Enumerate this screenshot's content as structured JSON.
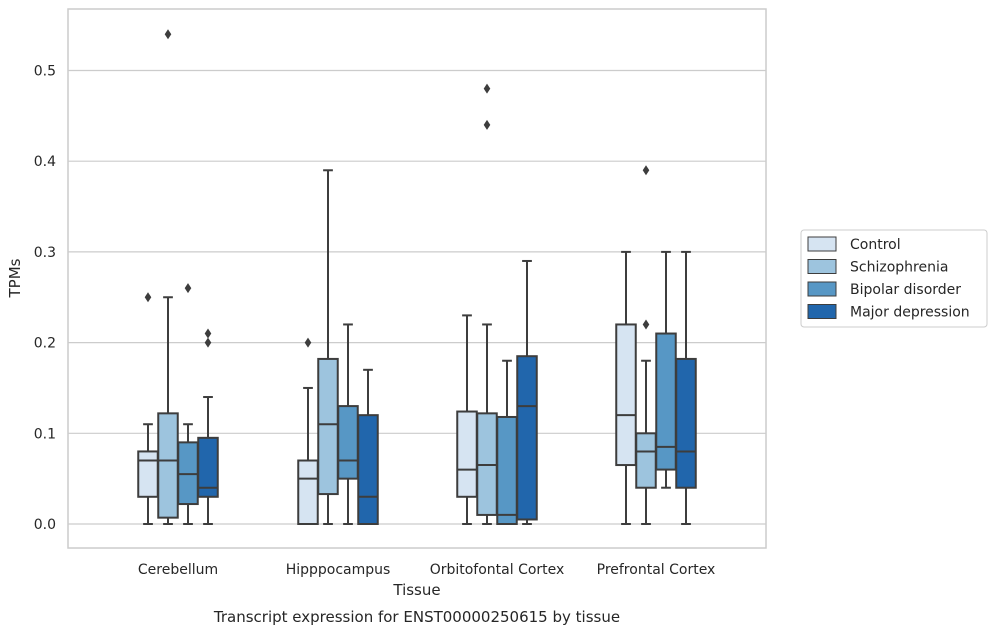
{
  "chart_data": {
    "type": "box",
    "title": "",
    "caption": "Transcript expression for ENST00000250615 by tissue",
    "xlabel": "Tissue",
    "ylabel": "TPMs",
    "ylim": [
      -0.026,
      0.565
    ],
    "yticks": [
      0.0,
      0.1,
      0.2,
      0.3,
      0.4,
      0.5
    ],
    "ytick_labels": [
      "0.0",
      "0.1",
      "0.2",
      "0.3",
      "0.4",
      "0.5"
    ],
    "grid": "horizontal",
    "legend_position": "right",
    "categories": [
      "Cerebellum",
      "Hipppocampus",
      "Orbitofontal Cortex",
      "Prefrontal Cortex"
    ],
    "series": [
      {
        "name": "Control",
        "color": "#d6e4f2",
        "boxes": [
          {
            "min": 0.0,
            "q1": 0.03,
            "median": 0.07,
            "q3": 0.08,
            "max": 0.11,
            "outliers": [
              0.25
            ]
          },
          {
            "min": 0.0,
            "q1": 0.0,
            "median": 0.05,
            "q3": 0.07,
            "max": 0.15,
            "outliers": [
              0.2
            ]
          },
          {
            "min": 0.0,
            "q1": 0.03,
            "median": 0.06,
            "q3": 0.124,
            "max": 0.23,
            "outliers": []
          },
          {
            "min": 0.0,
            "q1": 0.065,
            "median": 0.12,
            "q3": 0.22,
            "max": 0.3,
            "outliers": []
          }
        ]
      },
      {
        "name": "Schizophrenia",
        "color": "#9dc4de",
        "boxes": [
          {
            "min": 0.0,
            "q1": 0.007,
            "median": 0.07,
            "q3": 0.122,
            "max": 0.25,
            "outliers": [
              0.54
            ]
          },
          {
            "min": 0.0,
            "q1": 0.033,
            "median": 0.11,
            "q3": 0.182,
            "max": 0.39,
            "outliers": []
          },
          {
            "min": 0.0,
            "q1": 0.01,
            "median": 0.065,
            "q3": 0.122,
            "max": 0.22,
            "outliers": [
              0.44,
              0.48
            ]
          },
          {
            "min": 0.0,
            "q1": 0.04,
            "median": 0.08,
            "q3": 0.1,
            "max": 0.18,
            "outliers": [
              0.22,
              0.39
            ]
          }
        ]
      },
      {
        "name": "Bipolar disorder",
        "color": "#5797c5",
        "boxes": [
          {
            "min": 0.0,
            "q1": 0.022,
            "median": 0.055,
            "q3": 0.09,
            "max": 0.11,
            "outliers": [
              0.26
            ]
          },
          {
            "min": 0.0,
            "q1": 0.05,
            "median": 0.07,
            "q3": 0.13,
            "max": 0.22,
            "outliers": []
          },
          {
            "min": 0.0,
            "q1": 0.0,
            "median": 0.01,
            "q3": 0.118,
            "max": 0.18,
            "outliers": []
          },
          {
            "min": 0.04,
            "q1": 0.06,
            "median": 0.085,
            "q3": 0.21,
            "max": 0.3,
            "outliers": []
          }
        ]
      },
      {
        "name": "Major depression",
        "color": "#2166ac",
        "boxes": [
          {
            "min": 0.0,
            "q1": 0.03,
            "median": 0.04,
            "q3": 0.095,
            "max": 0.14,
            "outliers": [
              0.2,
              0.21
            ]
          },
          {
            "min": 0.0,
            "q1": 0.0,
            "median": 0.03,
            "q3": 0.12,
            "max": 0.17,
            "outliers": []
          },
          {
            "min": 0.0,
            "q1": 0.005,
            "median": 0.13,
            "q3": 0.185,
            "max": 0.29,
            "outliers": []
          },
          {
            "min": 0.0,
            "q1": 0.04,
            "median": 0.08,
            "q3": 0.182,
            "max": 0.3,
            "outliers": []
          }
        ]
      }
    ]
  }
}
